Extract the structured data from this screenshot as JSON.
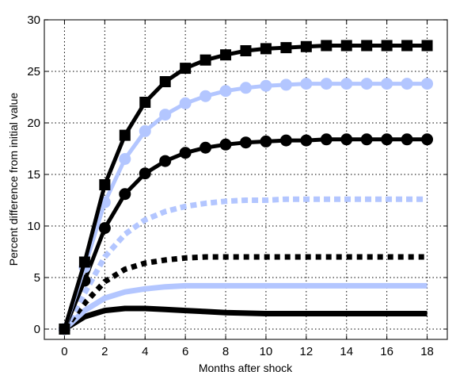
{
  "chart_data": {
    "type": "line",
    "title": "",
    "xlabel": "Months after shock",
    "ylabel": "Percent difference from initial value",
    "xlim": [
      -1,
      19
    ],
    "ylim": [
      -1,
      30
    ],
    "xticks": [
      0,
      2,
      4,
      6,
      8,
      10,
      12,
      14,
      16,
      18
    ],
    "yticks": [
      0,
      5,
      10,
      15,
      20,
      25,
      30
    ],
    "grid": true,
    "x": [
      0,
      1,
      2,
      3,
      4,
      5,
      6,
      7,
      8,
      9,
      10,
      11,
      12,
      13,
      14,
      15,
      16,
      17,
      18
    ],
    "series": [
      {
        "color": "#000000",
        "style": "solid",
        "marker": "square",
        "values": [
          0,
          6.5,
          14,
          18.8,
          22,
          24,
          25.3,
          26.1,
          26.6,
          27.0,
          27.2,
          27.3,
          27.4,
          27.5,
          27.5,
          27.5,
          27.5,
          27.5,
          27.5
        ]
      },
      {
        "color": "#b3c6ff",
        "style": "solid",
        "marker": "circle",
        "values": [
          0,
          6,
          12.3,
          16.5,
          19.2,
          20.8,
          21.9,
          22.6,
          23.1,
          23.4,
          23.6,
          23.7,
          23.8,
          23.8,
          23.8,
          23.8,
          23.8,
          23.8,
          23.8
        ]
      },
      {
        "color": "#000000",
        "style": "solid",
        "marker": "circle",
        "values": [
          0,
          4.7,
          9.8,
          13.1,
          15.1,
          16.3,
          17.1,
          17.6,
          17.9,
          18.1,
          18.2,
          18.3,
          18.3,
          18.4,
          18.4,
          18.4,
          18.4,
          18.4,
          18.4
        ]
      },
      {
        "color": "#b3c6ff",
        "style": "dashed",
        "marker": "none",
        "values": [
          0,
          3.5,
          7.0,
          9.2,
          10.6,
          11.4,
          11.9,
          12.2,
          12.4,
          12.5,
          12.5,
          12.6,
          12.6,
          12.6,
          12.6,
          12.6,
          12.6,
          12.6,
          12.6
        ]
      },
      {
        "color": "#000000",
        "style": "dotted",
        "marker": "none",
        "values": [
          0,
          2.5,
          4.6,
          5.8,
          6.4,
          6.7,
          6.9,
          7.0,
          7.0,
          7.0,
          7.0,
          7.0,
          7.0,
          7.0,
          7.0,
          7.0,
          7.0,
          7.0,
          7.0
        ]
      },
      {
        "color": "#b3c6ff",
        "style": "solid",
        "marker": "none",
        "values": [
          0,
          1.8,
          3.0,
          3.6,
          3.9,
          4.1,
          4.2,
          4.2,
          4.2,
          4.2,
          4.2,
          4.2,
          4.2,
          4.2,
          4.2,
          4.2,
          4.2,
          4.2,
          4.2
        ]
      },
      {
        "color": "#000000",
        "style": "solid",
        "marker": "none",
        "values": [
          0,
          1.2,
          1.8,
          2.0,
          2.0,
          1.9,
          1.8,
          1.7,
          1.6,
          1.55,
          1.5,
          1.5,
          1.5,
          1.5,
          1.5,
          1.5,
          1.5,
          1.5,
          1.5
        ]
      }
    ]
  }
}
